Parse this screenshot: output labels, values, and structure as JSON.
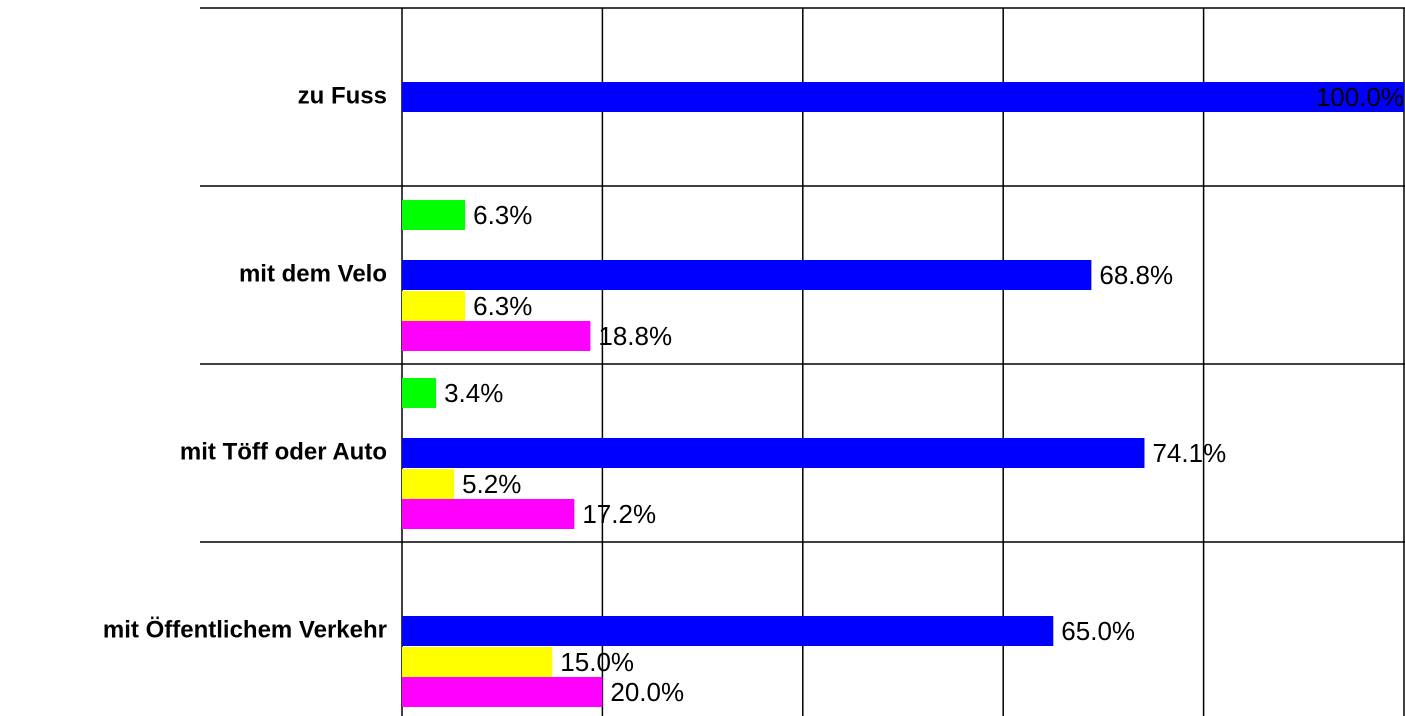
{
  "chart_data": {
    "type": "hbar",
    "categories": [
      "zu Fuss",
      "mit dem Velo",
      "mit Töff oder Auto",
      "mit Öffentlichem Verkehr"
    ],
    "series": [
      {
        "color": "#00ff00",
        "values": [
          null,
          6.3,
          3.4,
          null
        ],
        "value_labels": [
          null,
          "6.3%",
          "3.4%",
          null
        ]
      },
      {
        "color": "#0000ff",
        "values": [
          100.0,
          68.8,
          74.1,
          65.0
        ],
        "value_labels": [
          "100.0%",
          "68.8%",
          "74.1%",
          "65.0%"
        ]
      },
      {
        "color": "#ffff00",
        "values": [
          null,
          6.3,
          5.2,
          15.0
        ],
        "value_labels": [
          null,
          "6.3%",
          "5.2%",
          "15.0%"
        ]
      },
      {
        "color": "#ff00ff",
        "values": [
          null,
          18.8,
          17.2,
          20.0
        ],
        "value_labels": [
          null,
          "18.8%",
          "17.2%",
          "20.0%"
        ]
      }
    ],
    "xlim": [
      0,
      100
    ],
    "xticks": [
      0,
      20,
      40,
      60,
      80,
      100
    ],
    "tick_labels": false,
    "grid": true
  }
}
